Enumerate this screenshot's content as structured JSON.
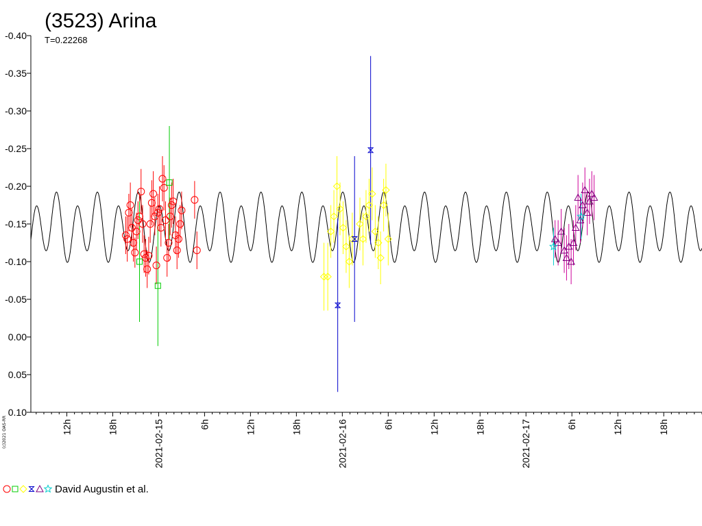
{
  "chart_data": {
    "type": "scatter",
    "title": "(3523) Arina",
    "subtitle": "T=0.22268",
    "credit": "(c)2021 OAS-RR",
    "y_axis": {
      "inverted": true,
      "range": [
        -0.4,
        0.1
      ],
      "tick_labels": [
        "-0.40",
        "-0.35",
        "-0.30",
        "-0.25",
        "-0.20",
        "-0.15",
        "-0.10",
        "-0.05",
        "0.00",
        "0.05",
        "0.10"
      ],
      "tick_values": [
        -0.4,
        -0.35,
        -0.3,
        -0.25,
        -0.2,
        -0.15,
        -0.1,
        -0.05,
        0.0,
        0.05,
        0.1
      ]
    },
    "x_axis": {
      "unit": "hours from 2021-02-14 00:00",
      "range": [
        7.3,
        95.0
      ],
      "tick_labels": [
        {
          "hour": 12,
          "label": "12h"
        },
        {
          "hour": 18,
          "label": "18h"
        },
        {
          "hour": 24,
          "label": "2021-02-15"
        },
        {
          "hour": 30,
          "label": "6h"
        },
        {
          "hour": 36,
          "label": "12h"
        },
        {
          "hour": 42,
          "label": "18h"
        },
        {
          "hour": 48,
          "label": "2021-02-16"
        },
        {
          "hour": 54,
          "label": "6h"
        },
        {
          "hour": 60,
          "label": "12h"
        },
        {
          "hour": 66,
          "label": "18h"
        },
        {
          "hour": 72,
          "label": "2021-02-17"
        },
        {
          "hour": 78,
          "label": "6h"
        },
        {
          "hour": 84,
          "label": "12h"
        },
        {
          "hour": 90,
          "label": "18h"
        }
      ]
    },
    "model": {
      "name": "fit curve",
      "period_days": 0.22268,
      "mean_mag": -0.145,
      "amp_main": 0.038,
      "amp_secondary": 0.012,
      "color": "#000000"
    },
    "grid": false,
    "legend": {
      "position": "bottom-left",
      "text": "David Augustin et al.",
      "symbols": [
        {
          "marker": "circle",
          "color": "#ff0000"
        },
        {
          "marker": "square",
          "color": "#00cc00"
        },
        {
          "marker": "diamond",
          "color": "#ffff00"
        },
        {
          "marker": "bowtie",
          "color": "#0000cc"
        },
        {
          "marker": "triangle",
          "color": "#800080"
        },
        {
          "marker": "star",
          "color": "#00cccc"
        }
      ]
    },
    "series": [
      {
        "marker": "circle",
        "color": "#ff0000",
        "errorbar_color": "#ff0000",
        "points": [
          {
            "x": 19.7,
            "y": -0.135,
            "err": 0.025
          },
          {
            "x": 19.9,
            "y": -0.13,
            "err": 0.03
          },
          {
            "x": 20.1,
            "y": -0.165,
            "err": 0.025
          },
          {
            "x": 20.3,
            "y": -0.175,
            "err": 0.03
          },
          {
            "x": 20.5,
            "y": -0.145,
            "err": 0.025
          },
          {
            "x": 20.7,
            "y": -0.125,
            "err": 0.025
          },
          {
            "x": 20.9,
            "y": -0.112,
            "err": 0.02
          },
          {
            "x": 21.1,
            "y": -0.14,
            "err": 0.025
          },
          {
            "x": 21.3,
            "y": -0.155,
            "err": 0.025
          },
          {
            "x": 21.5,
            "y": -0.16,
            "err": 0.03
          },
          {
            "x": 21.7,
            "y": -0.193,
            "err": 0.03
          },
          {
            "x": 21.9,
            "y": -0.15,
            "err": 0.025
          },
          {
            "x": 22.1,
            "y": -0.11,
            "err": 0.025
          },
          {
            "x": 22.3,
            "y": -0.105,
            "err": 0.025
          },
          {
            "x": 22.5,
            "y": -0.09,
            "err": 0.025
          },
          {
            "x": 22.7,
            "y": -0.108,
            "err": 0.025
          },
          {
            "x": 22.9,
            "y": -0.15,
            "err": 0.025
          },
          {
            "x": 23.1,
            "y": -0.178,
            "err": 0.03
          },
          {
            "x": 23.3,
            "y": -0.19,
            "err": 0.03
          },
          {
            "x": 23.5,
            "y": -0.16,
            "err": 0.025
          },
          {
            "x": 23.7,
            "y": -0.095,
            "err": 0.025
          },
          {
            "x": 23.9,
            "y": -0.165,
            "err": 0.025
          },
          {
            "x": 24.1,
            "y": -0.17,
            "err": 0.03
          },
          {
            "x": 24.3,
            "y": -0.145,
            "err": 0.025
          },
          {
            "x": 24.5,
            "y": -0.21,
            "err": 0.03
          },
          {
            "x": 24.7,
            "y": -0.198,
            "err": 0.03
          },
          {
            "x": 24.9,
            "y": -0.155,
            "err": 0.025
          },
          {
            "x": 25.1,
            "y": -0.105,
            "err": 0.025
          },
          {
            "x": 25.3,
            "y": -0.125,
            "err": 0.025
          },
          {
            "x": 25.5,
            "y": -0.16,
            "err": 0.025
          },
          {
            "x": 25.7,
            "y": -0.175,
            "err": 0.03
          },
          {
            "x": 25.9,
            "y": -0.18,
            "err": 0.03
          },
          {
            "x": 26.2,
            "y": -0.135,
            "err": 0.025
          },
          {
            "x": 26.4,
            "y": -0.115,
            "err": 0.025
          },
          {
            "x": 26.6,
            "y": -0.13,
            "err": 0.025
          },
          {
            "x": 26.8,
            "y": -0.15,
            "err": 0.025
          },
          {
            "x": 27.0,
            "y": -0.168,
            "err": 0.025
          },
          {
            "x": 28.7,
            "y": -0.182,
            "err": 0.025
          },
          {
            "x": 29.0,
            "y": -0.115,
            "err": 0.025
          }
        ]
      },
      {
        "marker": "square",
        "color": "#00cc00",
        "errorbar_color": "#00cc00",
        "points": [
          {
            "x": 21.5,
            "y": -0.1,
            "err": 0.08
          },
          {
            "x": 23.9,
            "y": -0.068,
            "err": 0.08
          },
          {
            "x": 25.4,
            "y": -0.205,
            "err": 0.075
          }
        ]
      },
      {
        "marker": "diamond",
        "color": "#ffff00",
        "errorbar_color": "#ffff00",
        "points": [
          {
            "x": 45.6,
            "y": -0.08,
            "err": 0.045
          },
          {
            "x": 46.1,
            "y": -0.08,
            "err": 0.045
          },
          {
            "x": 46.5,
            "y": -0.14,
            "err": 0.035
          },
          {
            "x": 46.9,
            "y": -0.16,
            "err": 0.035
          },
          {
            "x": 47.3,
            "y": -0.2,
            "err": 0.04
          },
          {
            "x": 47.7,
            "y": -0.17,
            "err": 0.035
          },
          {
            "x": 48.1,
            "y": -0.145,
            "err": 0.035
          },
          {
            "x": 48.5,
            "y": -0.12,
            "err": 0.035
          },
          {
            "x": 48.9,
            "y": -0.1,
            "err": 0.035
          },
          {
            "x": 49.3,
            "y": -0.13,
            "err": 0.035
          },
          {
            "x": 50.3,
            "y": -0.15,
            "err": 0.035
          },
          {
            "x": 50.7,
            "y": -0.13,
            "err": 0.035
          },
          {
            "x": 51.1,
            "y": -0.16,
            "err": 0.035
          },
          {
            "x": 51.5,
            "y": -0.175,
            "err": 0.035
          },
          {
            "x": 51.9,
            "y": -0.19,
            "err": 0.035
          },
          {
            "x": 52.3,
            "y": -0.14,
            "err": 0.035
          },
          {
            "x": 52.7,
            "y": -0.125,
            "err": 0.035
          },
          {
            "x": 53.0,
            "y": -0.105,
            "err": 0.035
          },
          {
            "x": 53.4,
            "y": -0.175,
            "err": 0.035
          },
          {
            "x": 53.7,
            "y": -0.195,
            "err": 0.035
          },
          {
            "x": 54.0,
            "y": -0.13,
            "err": 0.035
          }
        ]
      },
      {
        "marker": "bowtie",
        "color": "#0000cc",
        "errorbar_color": "#0000cc",
        "points": [
          {
            "x": 47.4,
            "y": -0.042,
            "err": 0.115
          },
          {
            "x": 49.6,
            "y": -0.13,
            "err": 0.11
          },
          {
            "x": 51.7,
            "y": -0.248,
            "err": 0.125
          }
        ]
      },
      {
        "marker": "triangle",
        "color": "#800080",
        "errorbar_color": "#cc0099",
        "points": [
          {
            "x": 75.8,
            "y": -0.13,
            "err": 0.025
          },
          {
            "x": 76.2,
            "y": -0.125,
            "err": 0.03
          },
          {
            "x": 76.6,
            "y": -0.14,
            "err": 0.03
          },
          {
            "x": 77.0,
            "y": -0.115,
            "err": 0.03
          },
          {
            "x": 77.3,
            "y": -0.105,
            "err": 0.03
          },
          {
            "x": 77.6,
            "y": -0.12,
            "err": 0.03
          },
          {
            "x": 77.9,
            "y": -0.1,
            "err": 0.03
          },
          {
            "x": 78.2,
            "y": -0.125,
            "err": 0.03
          },
          {
            "x": 78.5,
            "y": -0.145,
            "err": 0.03
          },
          {
            "x": 78.8,
            "y": -0.185,
            "err": 0.03
          },
          {
            "x": 79.1,
            "y": -0.155,
            "err": 0.03
          },
          {
            "x": 79.4,
            "y": -0.175,
            "err": 0.03
          },
          {
            "x": 79.7,
            "y": -0.195,
            "err": 0.03
          },
          {
            "x": 80.0,
            "y": -0.165,
            "err": 0.03
          },
          {
            "x": 80.3,
            "y": -0.18,
            "err": 0.03
          },
          {
            "x": 80.6,
            "y": -0.19,
            "err": 0.03
          },
          {
            "x": 80.9,
            "y": -0.185,
            "err": 0.03
          }
        ]
      },
      {
        "marker": "star",
        "color": "#00cccc",
        "errorbar_color": "#00cccc",
        "points": [
          {
            "x": 75.6,
            "y": -0.12,
            "err": 0.025
          },
          {
            "x": 79.2,
            "y": -0.16,
            "err": 0.03
          }
        ]
      }
    ]
  }
}
